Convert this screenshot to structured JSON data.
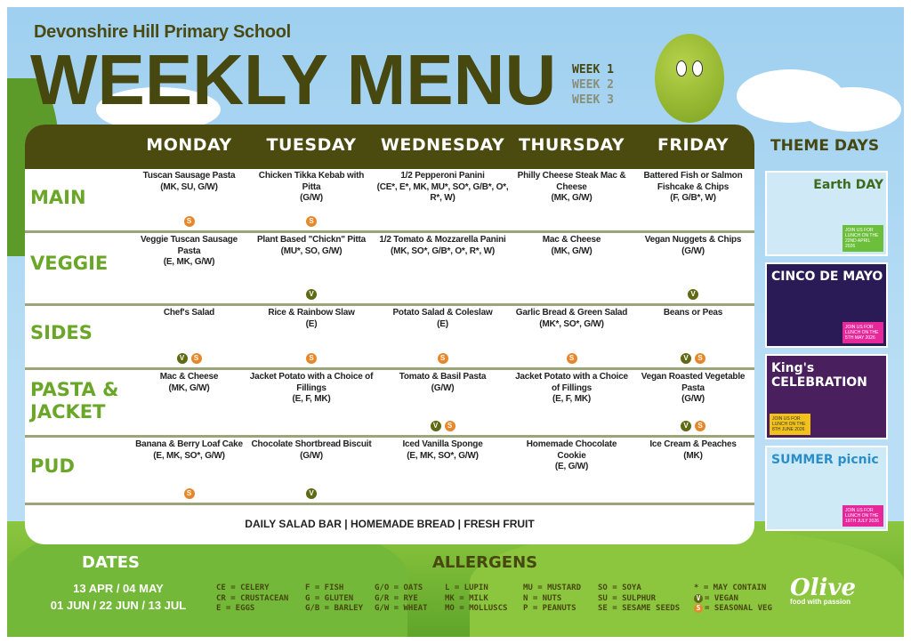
{
  "header": {
    "school": "Devonshire Hill Primary School",
    "title": "WEEKLY MENU",
    "weeks": [
      {
        "label": "WEEK 1",
        "active": true
      },
      {
        "label": "WEEK 2",
        "active": false
      },
      {
        "label": "WEEK 3",
        "active": false
      }
    ]
  },
  "days": [
    "MONDAY",
    "TUESDAY",
    "WEDNESDAY",
    "THURSDAY",
    "FRIDAY"
  ],
  "rows": [
    {
      "label": "MAIN",
      "cells": [
        {
          "name": "Tuscan Sausage Pasta",
          "allergens": "(MK, SU, G/W)",
          "badges": [
            "S"
          ]
        },
        {
          "name": "Chicken Tikka Kebab with Pitta",
          "allergens": "(G/W)",
          "badges": [
            "S"
          ]
        },
        {
          "name": "1/2 Pepperoni Panini",
          "allergens": "(CE*, E*, MK, MU*, SO*, G/B*, O*, R*, W)",
          "badges": []
        },
        {
          "name": "Philly Cheese Steak Mac & Cheese",
          "allergens": "(MK, G/W)",
          "badges": []
        },
        {
          "name": "Battered Fish or Salmon Fishcake & Chips",
          "allergens": "(F, G/B*, W)",
          "badges": []
        }
      ]
    },
    {
      "label": "VEGGIE",
      "cells": [
        {
          "name": "Veggie Tuscan Sausage Pasta",
          "allergens": "(E, MK, G/W)",
          "badges": []
        },
        {
          "name": "Plant Based \"Chickn\" Pitta",
          "allergens": "(MU*, SO, G/W)",
          "badges": [
            "V"
          ]
        },
        {
          "name": "1/2 Tomato & Mozzarella Panini",
          "allergens": "(MK, SO*, G/B*, O*, R*, W)",
          "badges": []
        },
        {
          "name": "Mac & Cheese",
          "allergens": "(MK, G/W)",
          "badges": []
        },
        {
          "name": "Vegan Nuggets & Chips",
          "allergens": "(G/W)",
          "badges": [
            "V"
          ]
        }
      ]
    },
    {
      "label": "SIDES",
      "cells": [
        {
          "name": "Chef's Salad",
          "allergens": "",
          "badges": [
            "V",
            "S"
          ]
        },
        {
          "name": "Rice & Rainbow Slaw",
          "allergens": "(E)",
          "badges": [
            "S"
          ]
        },
        {
          "name": "Potato Salad & Coleslaw",
          "allergens": "(E)",
          "badges": [
            "S"
          ]
        },
        {
          "name": "Garlic Bread & Green Salad",
          "allergens": "(MK*, SO*, G/W)",
          "badges": [
            "S"
          ]
        },
        {
          "name": "Beans or Peas",
          "allergens": "",
          "badges": [
            "V",
            "S"
          ]
        }
      ]
    },
    {
      "label": "PASTA & JACKET",
      "cells": [
        {
          "name": "Mac & Cheese",
          "allergens": "(MK, G/W)",
          "badges": []
        },
        {
          "name": "Jacket Potato with a Choice of Fillings",
          "allergens": "(E, F, MK)",
          "badges": []
        },
        {
          "name": "Tomato & Basil Pasta",
          "allergens": "(G/W)",
          "badges": [
            "V",
            "S"
          ]
        },
        {
          "name": "Jacket Potato with a Choice of Fillings",
          "allergens": "(E, F, MK)",
          "badges": []
        },
        {
          "name": "Vegan Roasted Vegetable Pasta",
          "allergens": "(G/W)",
          "badges": [
            "V",
            "S"
          ]
        }
      ]
    },
    {
      "label": "PUD",
      "cells": [
        {
          "name": "Banana & Berry Loaf Cake",
          "allergens": "(E, MK, SO*, G/W)",
          "badges": [
            "S"
          ]
        },
        {
          "name": "Chocolate Shortbread Biscuit",
          "allergens": "(G/W)",
          "badges": [
            "V"
          ]
        },
        {
          "name": "Iced Vanilla Sponge",
          "allergens": "(E, MK, SO*, G/W)",
          "badges": []
        },
        {
          "name": "Homemade Chocolate Cookie",
          "allergens": "(E, G/W)",
          "badges": []
        },
        {
          "name": "Ice Cream & Peaches",
          "allergens": "(MK)",
          "badges": []
        }
      ]
    }
  ],
  "footer": "DAILY SALAD BAR | HOMEMADE BREAD | FRESH FRUIT",
  "theme_days": {
    "title": "THEME DAYS",
    "cards": [
      {
        "title": "Earth DAY",
        "note": "JOIN US FOR LUNCH ON THE 22ND APRIL 2026",
        "bg": "#cfe9f7",
        "color": "#3b6b1c",
        "noteBg": "#6cbf3a"
      },
      {
        "title": "CINCO DE MAYO",
        "note": "JOIN US FOR LUNCH ON THE 5TH MAY 2026",
        "bg": "#2a1a55",
        "color": "#ffffff",
        "noteBg": "#e8279a"
      },
      {
        "title": "King's CELEBRATION",
        "note": "JOIN US FOR LUNCH ON THE 8TH JUNE 2026",
        "bg": "#4a1f5e",
        "color": "#ffffff",
        "noteBg": "#f2c21b"
      },
      {
        "title": "SUMMER picnic",
        "note": "JOIN US FOR LUNCH ON THE 16TH JULY 2026",
        "bg": "#cfeaf7",
        "color": "#2a8fc8",
        "noteBg": "#e8279a"
      }
    ]
  },
  "dates": {
    "title": "DATES",
    "lines": [
      "13 APR / 04 MAY",
      "01 JUN / 22 JUN / 13 JUL"
    ]
  },
  "allergens": {
    "title": "ALLERGENS",
    "columns": [
      [
        "CE = CELERY",
        "CR = CRUSTACEAN",
        "E = EGGS"
      ],
      [
        "F = FISH",
        "G = GLUTEN",
        "G/B = BARLEY"
      ],
      [
        "G/O = OATS",
        "G/R = RYE",
        "G/W = WHEAT"
      ],
      [
        "L = LUPIN",
        "MK = MILK",
        "MO = MOLLUSCS"
      ],
      [
        "MU = MUSTARD",
        "N = NUTS",
        "P = PEANUTS"
      ],
      [
        "SO = SOYA",
        "SU = SULPHUR",
        "SE = SESAME SEEDS"
      ],
      [
        "* = MAY CONTAIN",
        "= VEGAN",
        "= SEASONAL VEG"
      ]
    ]
  },
  "logo": {
    "name": "Olive",
    "tagline": "food with passion"
  },
  "colors": {
    "olive_dark": "#4b4a0f",
    "green": "#6aa628",
    "vegan": "#5f6a12",
    "seasonal": "#e8872a"
  }
}
